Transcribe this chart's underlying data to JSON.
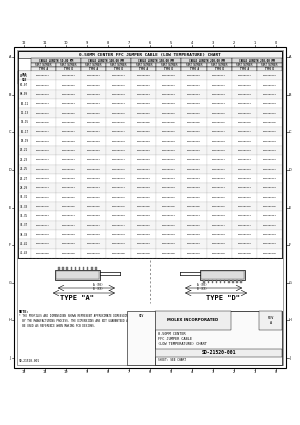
{
  "title": "0.50MM CENTER FFC JUMPER CABLE (LOW TEMPERATURE) CHART",
  "bg_color": "#ffffff",
  "border_color": "#000000",
  "title_block": {
    "company": "MOLEX INCORPORATED",
    "doc_title1": "0.50MM CENTER",
    "doc_title2": "FFC JUMPER CABLE",
    "doc_title3": "(LOW TEMPERATURE) CHART",
    "doc_num": "SD-21520-001",
    "sheet": "SEE CHART",
    "rev": "A"
  },
  "rows": [
    [
      "04-05",
      "0210200041",
      "0210200051",
      "0210200061",
      "0210200071",
      "0210200081",
      "0210200091",
      "0210200101",
      "0210200111",
      "0210200121",
      "0210200131"
    ],
    [
      "06-07",
      "0210200042",
      "0210200052",
      "0210200062",
      "0210200072",
      "0210200082",
      "0210200092",
      "0210200102",
      "0210200112",
      "0210200122",
      "0210200132"
    ],
    [
      "08-09",
      "0210200043",
      "0210200053",
      "0210200063",
      "0210200073",
      "0210200083",
      "0210200093",
      "0210200103",
      "0210200113",
      "0210200123",
      "0210200133"
    ],
    [
      "10-11",
      "0210200044",
      "0210200054",
      "0210200064",
      "0210200074",
      "0210200084",
      "0210200094",
      "0210200104",
      "0210200114",
      "0210200124",
      "0210200134"
    ],
    [
      "12-13",
      "0210200045",
      "0210200055",
      "0210200065",
      "0210200075",
      "0210200085",
      "0210200095",
      "0210200105",
      "0210200115",
      "0210200125",
      "0210200135"
    ],
    [
      "14-15",
      "0210200046",
      "0210200056",
      "0210200066",
      "0210200076",
      "0210200086",
      "0210200096",
      "0210200106",
      "0210200116",
      "0210200126",
      "0210200136"
    ],
    [
      "16-17",
      "0210200047",
      "0210200057",
      "0210200067",
      "0210200077",
      "0210200087",
      "0210200097",
      "0210200107",
      "0210200117",
      "0210200127",
      "0210200137"
    ],
    [
      "18-19",
      "0210200048",
      "0210200058",
      "0210200068",
      "0210200078",
      "0210200088",
      "0210200098",
      "0210200108",
      "0210200118",
      "0210200128",
      "0210200138"
    ],
    [
      "20-21",
      "0210200049",
      "0210200059",
      "0210200069",
      "0210200079",
      "0210200089",
      "0210200099",
      "0210200109",
      "0210200119",
      "0210200129",
      "0210200139"
    ],
    [
      "22-23",
      "0210200141",
      "0210200151",
      "0210200161",
      "0210200171",
      "0210200181",
      "0210200191",
      "0210200201",
      "0210200211",
      "0210200221",
      "0210200231"
    ],
    [
      "24-25",
      "0210200142",
      "0210200152",
      "0210200162",
      "0210200172",
      "0210200182",
      "0210200192",
      "0210200202",
      "0210200212",
      "0210200222",
      "0210200232"
    ],
    [
      "26-27",
      "0210200143",
      "0210200153",
      "0210200163",
      "0210200173",
      "0210200183",
      "0210200193",
      "0210200203",
      "0210200213",
      "0210200223",
      "0210200233"
    ],
    [
      "28-29",
      "0210200144",
      "0210200154",
      "0210200164",
      "0210200174",
      "0210200184",
      "0210200194",
      "0210200204",
      "0210200214",
      "0210200224",
      "0210200234"
    ],
    [
      "30-31",
      "0210200145",
      "0210200155",
      "0210200165",
      "0210200175",
      "0210200185",
      "0210200195",
      "0210200205",
      "0210200215",
      "0210200225",
      "0210200235"
    ],
    [
      "32-33",
      "0210200146",
      "0210200156",
      "0210200166",
      "0210200176",
      "0210200186",
      "0210200196",
      "0210200206",
      "0210200216",
      "0210200226",
      "0210200236"
    ],
    [
      "34-35",
      "0210200364",
      "0210200374",
      "0210200384",
      "0210200394",
      "0210200404",
      "0210200414",
      "0210200424",
      "0210200434",
      "0210200444",
      "0210200454"
    ],
    [
      "36-37",
      "0210200147",
      "0210200157",
      "0210200167",
      "0210200177",
      "0210200187",
      "0210200197",
      "0210200207",
      "0210200217",
      "0210200227",
      "0210200237"
    ],
    [
      "38-39",
      "0210200148",
      "0210200158",
      "0210200168",
      "0210200178",
      "0210200188",
      "0210200198",
      "0210200208",
      "0210200218",
      "0210200228",
      "0210200238"
    ],
    [
      "40-41",
      "0210200149",
      "0210200159",
      "0210200169",
      "0210200179",
      "0210200189",
      "0210200199",
      "0210200209",
      "0210200219",
      "0210200229",
      "0210200239"
    ],
    [
      "42-43",
      "0210200150",
      "0210200160",
      "0210200170",
      "0210200180",
      "0210200190",
      "0210200200",
      "0210200210",
      "0210200220",
      "0210200230",
      "0210200240"
    ]
  ],
  "note_text": "* THE PROFILES AND DIMENSIONS SHOWN REPRESENT APPROXIMATE DIMENSIONS AS PERMITTED\n  BY THE MANUFACTURING PROCESS. THE DIMENSIONS ARE NOT GUARANTEED AND SHOULD ONLY\n  BE USED AS REFERENCE WHEN MAKING PCB DESIGNS.",
  "type_a_label": "TYPE \"A\"",
  "type_d_label": "TYPE \"D\"",
  "watermark_color": "#c8d8e8"
}
